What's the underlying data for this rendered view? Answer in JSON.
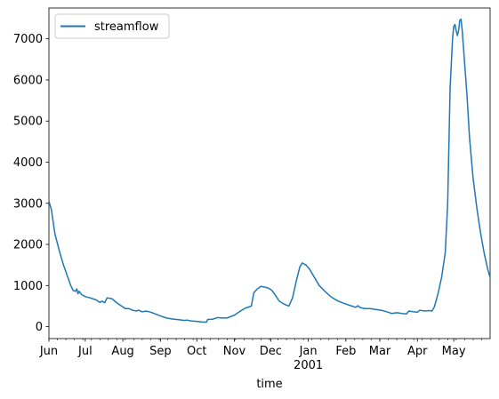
{
  "chart_data": {
    "type": "line",
    "title": "",
    "xlabel": "time",
    "ylabel": "",
    "ylim": [
      -290,
      7750
    ],
    "yticks": [
      0,
      1000,
      2000,
      3000,
      4000,
      5000,
      6000,
      7000
    ],
    "grid": false,
    "legend_placement": "top-left",
    "x_start": "2000-06-01",
    "x_end": "2001-05-31",
    "xticks": [
      {
        "date": "2000-06-01",
        "label": "Jun"
      },
      {
        "date": "2000-07-01",
        "label": "Jul"
      },
      {
        "date": "2000-08-01",
        "label": "Aug"
      },
      {
        "date": "2000-09-01",
        "label": "Sep"
      },
      {
        "date": "2000-10-01",
        "label": "Oct"
      },
      {
        "date": "2000-11-01",
        "label": "Nov"
      },
      {
        "date": "2000-12-01",
        "label": "Dec"
      },
      {
        "date": "2001-01-01",
        "label": "Jan"
      },
      {
        "date": "2001-02-01",
        "label": "Feb"
      },
      {
        "date": "2001-03-01",
        "label": "Mar"
      },
      {
        "date": "2001-04-01",
        "label": "Apr"
      },
      {
        "date": "2001-05-01",
        "label": "May"
      }
    ],
    "year_label": {
      "date": "2001-01-01",
      "label": "2001"
    },
    "series": [
      {
        "name": "streamflow",
        "color": "#1f77b4",
        "points": [
          [
            "2000-06-01",
            3050
          ],
          [
            "2000-06-03",
            2850
          ],
          [
            "2000-06-06",
            2250
          ],
          [
            "2000-06-10",
            1800
          ],
          [
            "2000-06-13",
            1500
          ],
          [
            "2000-06-16",
            1250
          ],
          [
            "2000-06-19",
            1000
          ],
          [
            "2000-06-21",
            880
          ],
          [
            "2000-06-23",
            860
          ],
          [
            "2000-06-24",
            920
          ],
          [
            "2000-06-25",
            800
          ],
          [
            "2000-06-26",
            860
          ],
          [
            "2000-06-28",
            780
          ],
          [
            "2000-07-01",
            730
          ],
          [
            "2000-07-05",
            700
          ],
          [
            "2000-07-10",
            650
          ],
          [
            "2000-07-13",
            590
          ],
          [
            "2000-07-15",
            620
          ],
          [
            "2000-07-17",
            580
          ],
          [
            "2000-07-19",
            700
          ],
          [
            "2000-07-23",
            680
          ],
          [
            "2000-07-27",
            580
          ],
          [
            "2000-08-01",
            480
          ],
          [
            "2000-08-03",
            440
          ],
          [
            "2000-08-06",
            440
          ],
          [
            "2000-08-09",
            400
          ],
          [
            "2000-08-12",
            380
          ],
          [
            "2000-08-14",
            400
          ],
          [
            "2000-08-17",
            360
          ],
          [
            "2000-08-20",
            380
          ],
          [
            "2000-08-23",
            360
          ],
          [
            "2000-08-26",
            330
          ],
          [
            "2000-09-01",
            260
          ],
          [
            "2000-09-06",
            210
          ],
          [
            "2000-09-11",
            185
          ],
          [
            "2000-09-16",
            170
          ],
          [
            "2000-09-21",
            150
          ],
          [
            "2000-09-23",
            160
          ],
          [
            "2000-09-26",
            140
          ],
          [
            "2000-10-01",
            130
          ],
          [
            "2000-10-06",
            110
          ],
          [
            "2000-10-09",
            110
          ],
          [
            "2000-10-10",
            175
          ],
          [
            "2000-10-14",
            180
          ],
          [
            "2000-10-18",
            220
          ],
          [
            "2000-10-22",
            210
          ],
          [
            "2000-10-26",
            210
          ],
          [
            "2000-11-01",
            280
          ],
          [
            "2000-11-06",
            380
          ],
          [
            "2000-11-10",
            450
          ],
          [
            "2000-11-13",
            480
          ],
          [
            "2000-11-15",
            500
          ],
          [
            "2000-11-17",
            820
          ],
          [
            "2000-11-20",
            920
          ],
          [
            "2000-11-23",
            980
          ],
          [
            "2000-11-26",
            960
          ],
          [
            "2000-11-29",
            940
          ],
          [
            "2000-12-02",
            880
          ],
          [
            "2000-12-05",
            760
          ],
          [
            "2000-12-08",
            620
          ],
          [
            "2000-12-12",
            550
          ],
          [
            "2000-12-16",
            500
          ],
          [
            "2000-12-19",
            700
          ],
          [
            "2000-12-22",
            1100
          ],
          [
            "2000-12-25",
            1450
          ],
          [
            "2000-12-27",
            1550
          ],
          [
            "2000-12-30",
            1500
          ],
          [
            "2001-01-02",
            1400
          ],
          [
            "2001-01-06",
            1200
          ],
          [
            "2001-01-10",
            1000
          ],
          [
            "2001-01-15",
            850
          ],
          [
            "2001-01-20",
            720
          ],
          [
            "2001-01-25",
            630
          ],
          [
            "2001-01-30",
            570
          ],
          [
            "2001-02-04",
            520
          ],
          [
            "2001-02-09",
            470
          ],
          [
            "2001-02-11",
            510
          ],
          [
            "2001-02-13",
            460
          ],
          [
            "2001-02-17",
            440
          ],
          [
            "2001-02-21",
            440
          ],
          [
            "2001-02-25",
            420
          ],
          [
            "2001-03-02",
            400
          ],
          [
            "2001-03-07",
            360
          ],
          [
            "2001-03-11",
            320
          ],
          [
            "2001-03-15",
            340
          ],
          [
            "2001-03-19",
            320
          ],
          [
            "2001-03-23",
            310
          ],
          [
            "2001-03-25",
            380
          ],
          [
            "2001-03-29",
            360
          ],
          [
            "2001-04-01",
            350
          ],
          [
            "2001-04-03",
            400
          ],
          [
            "2001-04-07",
            380
          ],
          [
            "2001-04-11",
            390
          ],
          [
            "2001-04-13",
            380
          ],
          [
            "2001-04-15",
            480
          ],
          [
            "2001-04-18",
            800
          ],
          [
            "2001-04-21",
            1200
          ],
          [
            "2001-04-24",
            1800
          ],
          [
            "2001-04-26",
            3000
          ],
          [
            "2001-04-28",
            5800
          ],
          [
            "2001-04-30",
            7000
          ],
          [
            "2001-05-01",
            7300
          ],
          [
            "2001-05-02",
            7350
          ],
          [
            "2001-05-03",
            7200
          ],
          [
            "2001-05-04",
            7080
          ],
          [
            "2001-05-05",
            7200
          ],
          [
            "2001-05-06",
            7450
          ],
          [
            "2001-05-07",
            7480
          ],
          [
            "2001-05-08",
            7200
          ],
          [
            "2001-05-10",
            6400
          ],
          [
            "2001-05-12",
            5600
          ],
          [
            "2001-05-14",
            4600
          ],
          [
            "2001-05-17",
            3600
          ],
          [
            "2001-05-20",
            2900
          ],
          [
            "2001-05-23",
            2300
          ],
          [
            "2001-05-26",
            1800
          ],
          [
            "2001-05-29",
            1400
          ],
          [
            "2001-05-31",
            1200
          ]
        ]
      }
    ]
  }
}
